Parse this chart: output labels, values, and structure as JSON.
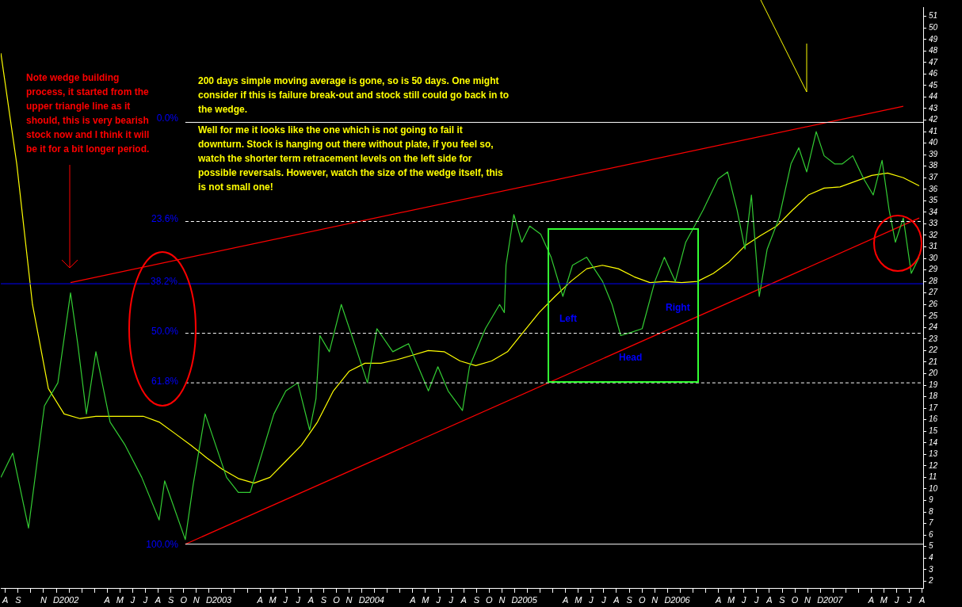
{
  "chart_data": {
    "type": "line",
    "xlim": [
      2001.554,
      2007.59
    ],
    "ylim": [
      1.4,
      51.8
    ],
    "xticks": [
      {
        "value": 2001.583,
        "label": "A"
      },
      {
        "value": 2001.667,
        "label": "S"
      },
      {
        "value": 2001.75,
        "label": null
      },
      {
        "value": 2001.833,
        "label": "N"
      },
      {
        "value": 2001.917,
        "label": "D"
      },
      {
        "value": 2002,
        "label": "2002"
      },
      {
        "value": 2002.083,
        "label": null
      },
      {
        "value": 2002.167,
        "label": null
      },
      {
        "value": 2002.25,
        "label": "A"
      },
      {
        "value": 2002.333,
        "label": "M"
      },
      {
        "value": 2002.417,
        "label": "J"
      },
      {
        "value": 2002.5,
        "label": "J"
      },
      {
        "value": 2002.583,
        "label": "A"
      },
      {
        "value": 2002.667,
        "label": "S"
      },
      {
        "value": 2002.75,
        "label": "O"
      },
      {
        "value": 2002.833,
        "label": "N"
      },
      {
        "value": 2002.917,
        "label": "D"
      },
      {
        "value": 2003,
        "label": "2003"
      },
      {
        "value": 2003.083,
        "label": null
      },
      {
        "value": 2003.167,
        "label": null
      },
      {
        "value": 2003.25,
        "label": "A"
      },
      {
        "value": 2003.333,
        "label": "M"
      },
      {
        "value": 2003.417,
        "label": "J"
      },
      {
        "value": 2003.5,
        "label": "J"
      },
      {
        "value": 2003.583,
        "label": "A"
      },
      {
        "value": 2003.667,
        "label": "S"
      },
      {
        "value": 2003.75,
        "label": "O"
      },
      {
        "value": 2003.833,
        "label": "N"
      },
      {
        "value": 2003.917,
        "label": "D"
      },
      {
        "value": 2004,
        "label": "2004"
      },
      {
        "value": 2004.083,
        "label": null
      },
      {
        "value": 2004.167,
        "label": null
      },
      {
        "value": 2004.25,
        "label": "A"
      },
      {
        "value": 2004.333,
        "label": "M"
      },
      {
        "value": 2004.417,
        "label": "J"
      },
      {
        "value": 2004.5,
        "label": "J"
      },
      {
        "value": 2004.583,
        "label": "A"
      },
      {
        "value": 2004.667,
        "label": "S"
      },
      {
        "value": 2004.75,
        "label": "O"
      },
      {
        "value": 2004.833,
        "label": "N"
      },
      {
        "value": 2004.917,
        "label": "D"
      },
      {
        "value": 2005,
        "label": "2005"
      },
      {
        "value": 2005.083,
        "label": null
      },
      {
        "value": 2005.167,
        "label": null
      },
      {
        "value": 2005.25,
        "label": "A"
      },
      {
        "value": 2005.333,
        "label": "M"
      },
      {
        "value": 2005.417,
        "label": "J"
      },
      {
        "value": 2005.5,
        "label": "J"
      },
      {
        "value": 2005.583,
        "label": "A"
      },
      {
        "value": 2005.667,
        "label": "S"
      },
      {
        "value": 2005.75,
        "label": "O"
      },
      {
        "value": 2005.833,
        "label": "N"
      },
      {
        "value": 2005.917,
        "label": "D"
      },
      {
        "value": 2006,
        "label": "2006"
      },
      {
        "value": 2006.083,
        "label": null
      },
      {
        "value": 2006.167,
        "label": null
      },
      {
        "value": 2006.25,
        "label": "A"
      },
      {
        "value": 2006.333,
        "label": "M"
      },
      {
        "value": 2006.417,
        "label": "J"
      },
      {
        "value": 2006.5,
        "label": "J"
      },
      {
        "value": 2006.583,
        "label": "A"
      },
      {
        "value": 2006.667,
        "label": "S"
      },
      {
        "value": 2006.75,
        "label": "O"
      },
      {
        "value": 2006.833,
        "label": "N"
      },
      {
        "value": 2006.917,
        "label": "D"
      },
      {
        "value": 2007,
        "label": "2007"
      },
      {
        "value": 2007.083,
        "label": null
      },
      {
        "value": 2007.167,
        "label": null
      },
      {
        "value": 2007.25,
        "label": "A"
      },
      {
        "value": 2007.333,
        "label": "M"
      },
      {
        "value": 2007.417,
        "label": "J"
      },
      {
        "value": 2007.5,
        "label": "J"
      },
      {
        "value": 2007.583,
        "label": "A"
      }
    ],
    "yticks": [
      2,
      3,
      4,
      5,
      6,
      7,
      8,
      9,
      10,
      11,
      12,
      13,
      14,
      15,
      16,
      17,
      18,
      19,
      20,
      21,
      22,
      23,
      24,
      25,
      26,
      27,
      28,
      29,
      30,
      31,
      32,
      33,
      34,
      35,
      36,
      37,
      38,
      39,
      40,
      41,
      42,
      43,
      44,
      45,
      46,
      47,
      48,
      49,
      50,
      51
    ],
    "grid": false,
    "legend": false,
    "marker": "none",
    "line_style": "solid",
    "series": [
      {
        "color": "#33cc33",
        "x": [
          2001.554,
          2001.632,
          2001.735,
          2001.839,
          2001.927,
          2002.01,
          2002.057,
          2002.114,
          2002.176,
          2002.269,
          2002.367,
          2002.476,
          2002.59,
          2002.626,
          2002.761,
          2002.813,
          2002.891,
          2003.031,
          2003.108,
          2003.186,
          2003.341,
          2003.419,
          2003.497,
          2003.575,
          2003.616,
          2003.642,
          2003.704,
          2003.782,
          2003.886,
          2003.953,
          2004.015,
          2004.119,
          2004.222,
          2004.352,
          2004.414,
          2004.481,
          2004.575,
          2004.621,
          2004.725,
          2004.818,
          2004.849,
          2004.86,
          2004.911,
          2004.963,
          2005.015,
          2005.087,
          2005.155,
          2005.232,
          2005.295,
          2005.388,
          2005.492,
          2005.554,
          2005.611,
          2005.684,
          2005.751,
          2005.834,
          2005.896,
          2005.968,
          2006.036,
          2006.15,
          2006.248,
          2006.31,
          2006.372,
          2006.424,
          2006.466,
          2006.517,
          2006.569,
          2006.647,
          2006.725,
          2006.776,
          2006.828,
          2006.89,
          2006.942,
          2007.01,
          2007.061,
          2007.129,
          2007.201,
          2007.263,
          2007.321,
          2007.367,
          2007.408,
          2007.46,
          2007.512,
          2007.564
        ],
        "values": [
          11.0,
          13.1,
          6.6,
          17.2,
          19.2,
          27.0,
          22.6,
          16.5,
          21.9,
          15.8,
          13.8,
          11.0,
          7.3,
          10.7,
          5.6,
          10.4,
          16.5,
          11.0,
          9.7,
          9.7,
          16.5,
          18.5,
          19.2,
          15.1,
          17.8,
          23.3,
          21.9,
          26.0,
          21.9,
          19.2,
          23.9,
          21.9,
          22.6,
          18.5,
          20.6,
          18.5,
          16.8,
          20.6,
          23.9,
          26.0,
          25.3,
          29.4,
          33.8,
          31.4,
          32.8,
          32.1,
          30.1,
          26.7,
          29.4,
          30.1,
          28.0,
          26.0,
          23.3,
          23.6,
          23.9,
          28.0,
          30.1,
          28.0,
          31.4,
          34.2,
          36.9,
          37.5,
          34.2,
          30.8,
          35.5,
          26.7,
          30.8,
          33.5,
          38.2,
          39.6,
          37.5,
          41.0,
          38.9,
          38.2,
          38.2,
          38.9,
          36.9,
          35.5,
          38.5,
          34.2,
          31.4,
          33.5,
          28.7,
          30.1
        ]
      },
      {
        "color": "#ffff00",
        "x": [
          2001.554,
          2001.658,
          2001.761,
          2001.865,
          2001.968,
          2002.072,
          2002.176,
          2002.279,
          2002.383,
          2002.486,
          2002.59,
          2002.694,
          2002.797,
          2002.901,
          2003.004,
          2003.108,
          2003.212,
          2003.315,
          2003.419,
          2003.522,
          2003.626,
          2003.73,
          2003.833,
          2003.937,
          2004.041,
          2004.144,
          2004.248,
          2004.351,
          2004.455,
          2004.559,
          2004.662,
          2004.766,
          2004.87,
          2004.973,
          2005.077,
          2005.181,
          2005.284,
          2005.388,
          2005.491,
          2005.595,
          2005.699,
          2005.802,
          2005.906,
          2006.009,
          2006.113,
          2006.217,
          2006.32,
          2006.424,
          2006.528,
          2006.631,
          2006.735,
          2006.839,
          2006.942,
          2007.046,
          2007.149,
          2007.253,
          2007.357,
          2007.46,
          2007.564
        ],
        "values": [
          47.8,
          38.2,
          26.0,
          18.7,
          16.5,
          16.1,
          16.3,
          16.3,
          16.3,
          16.3,
          15.8,
          14.8,
          13.8,
          12.7,
          11.7,
          10.9,
          10.5,
          11.0,
          12.4,
          13.8,
          15.8,
          18.5,
          20.2,
          20.9,
          20.9,
          21.2,
          21.6,
          22.0,
          21.9,
          21.1,
          20.7,
          21.1,
          21.9,
          23.6,
          25.3,
          26.7,
          28.0,
          29.1,
          29.4,
          29.1,
          28.4,
          27.9,
          28.0,
          27.9,
          28.0,
          28.7,
          29.7,
          31.1,
          32.0,
          32.8,
          34.2,
          35.5,
          36.1,
          36.2,
          36.7,
          37.2,
          37.4,
          37.0,
          36.3
        ]
      },
      {
        "color": "#ff0000",
        "x": [
          2002.01,
          2007.46
        ],
        "values": [
          27.9,
          43.2
        ]
      },
      {
        "color": "#ff0000",
        "x": [
          2002.761,
          2007.564
        ],
        "values": [
          5.2,
          33.5
        ]
      }
    ],
    "ref_lines": [
      {
        "axis": "y",
        "value": 41.8,
        "color": "#ffffff",
        "line_style": "solid"
      },
      {
        "axis": "y",
        "value": 33.2,
        "color": "#ffffff",
        "line_style": "dashed"
      },
      {
        "axis": "y",
        "value": 23.5,
        "color": "#ffffff",
        "line_style": "dashed"
      },
      {
        "axis": "y",
        "value": 19.2,
        "color": "#ffffff",
        "line_style": "dashed"
      },
      {
        "axis": "y",
        "value": 5.2,
        "color": "#ffffff",
        "line_style": "solid"
      },
      {
        "axis": "y",
        "value": 27.8,
        "color": "#0000ff",
        "line_style": "solid"
      }
    ],
    "annotations": [
      "Note wedge building process, it started from the upper triangle line as it should, this is very bearish stock now and I think it will be it for a bit longer period.",
      "200 days simple moving average is gone, so is 50 days. One might consider if this is failure break-out and stock still could go back in to the wedge.",
      "Well for me it looks like the one which is not going to fail it downturn. Stock is hanging out there without plate, if you feel so, watch the shorter term retracement levels on the left side for possible reversals. However, watch the size of the wedge itself, this is not small one!",
      "Left",
      "Head",
      "Right",
      "0.0%",
      "23.6%",
      "38.2%",
      "50.0%",
      "61.8%",
      "100.0%"
    ]
  }
}
